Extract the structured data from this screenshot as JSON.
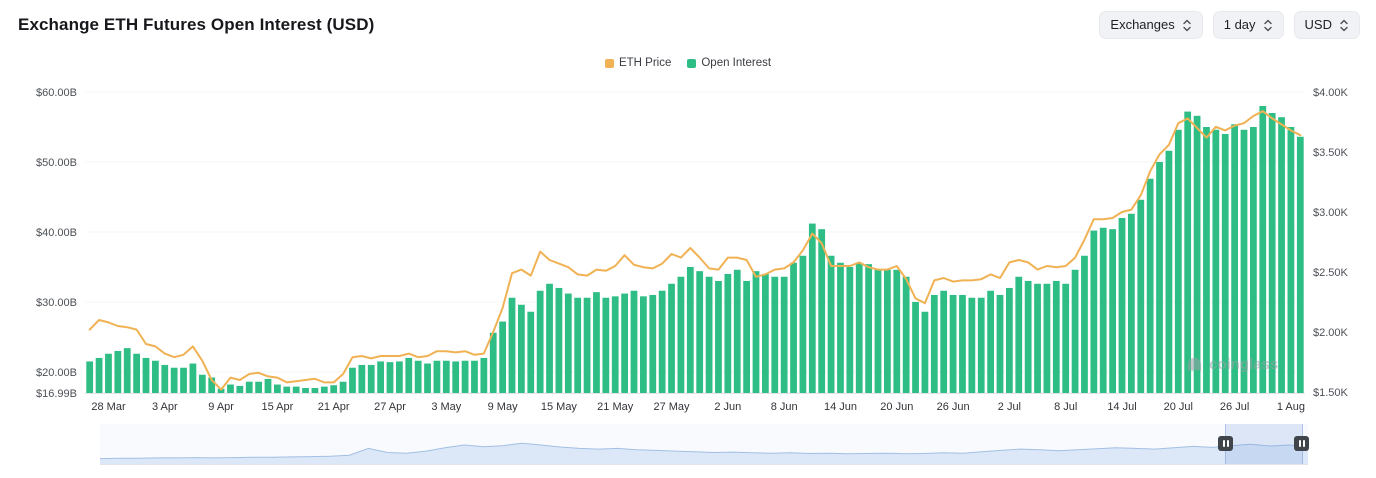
{
  "header": {
    "title": "Exchange ETH Futures Open Interest (USD)",
    "controls": [
      {
        "label": "Exchanges"
      },
      {
        "label": "1 day"
      },
      {
        "label": "USD"
      }
    ]
  },
  "legend": [
    {
      "label": "ETH Price",
      "color": "#F0B254"
    },
    {
      "label": "Open Interest",
      "color": "#2EBD85"
    }
  ],
  "watermark": "coinglass",
  "colors": {
    "bar": "#2EBD85",
    "line": "#F0B254",
    "navigator_fill": "#DCE8F8",
    "navigator_stroke": "#A3BFE4",
    "selection": "#BFD2F1",
    "handle": "#40454C"
  },
  "chart_data": {
    "type": "bar",
    "title": "Exchange ETH Futures Open Interest (USD)",
    "legend_position": "top",
    "grid": "horizontal-faint",
    "x": [
      "26 Mar",
      "27 Mar",
      "28 Mar",
      "29 Mar",
      "30 Mar",
      "31 Mar",
      "1 Apr",
      "2 Apr",
      "3 Apr",
      "4 Apr",
      "5 Apr",
      "6 Apr",
      "7 Apr",
      "8 Apr",
      "9 Apr",
      "10 Apr",
      "11 Apr",
      "12 Apr",
      "13 Apr",
      "14 Apr",
      "15 Apr",
      "16 Apr",
      "17 Apr",
      "18 Apr",
      "19 Apr",
      "20 Apr",
      "21 Apr",
      "22 Apr",
      "23 Apr",
      "24 Apr",
      "25 Apr",
      "26 Apr",
      "27 Apr",
      "28 Apr",
      "29 Apr",
      "30 Apr",
      "1 May",
      "2 May",
      "3 May",
      "4 May",
      "5 May",
      "6 May",
      "7 May",
      "8 May",
      "9 May",
      "10 May",
      "11 May",
      "12 May",
      "13 May",
      "14 May",
      "15 May",
      "16 May",
      "17 May",
      "18 May",
      "19 May",
      "20 May",
      "21 May",
      "22 May",
      "23 May",
      "24 May",
      "25 May",
      "26 May",
      "27 May",
      "28 May",
      "29 May",
      "30 May",
      "31 May",
      "1 Jun",
      "2 Jun",
      "3 Jun",
      "4 Jun",
      "5 Jun",
      "6 Jun",
      "7 Jun",
      "8 Jun",
      "9 Jun",
      "10 Jun",
      "11 Jun",
      "12 Jun",
      "13 Jun",
      "14 Jun",
      "15 Jun",
      "16 Jun",
      "17 Jun",
      "18 Jun",
      "19 Jun",
      "20 Jun",
      "21 Jun",
      "22 Jun",
      "23 Jun",
      "24 Jun",
      "25 Jun",
      "26 Jun",
      "27 Jun",
      "28 Jun",
      "29 Jun",
      "30 Jun",
      "1 Jul",
      "2 Jul",
      "3 Jul",
      "4 Jul",
      "5 Jul",
      "6 Jul",
      "7 Jul",
      "8 Jul",
      "9 Jul",
      "10 Jul",
      "11 Jul",
      "12 Jul",
      "13 Jul",
      "14 Jul",
      "15 Jul",
      "16 Jul",
      "17 Jul",
      "18 Jul",
      "19 Jul",
      "20 Jul",
      "21 Jul",
      "22 Jul",
      "23 Jul",
      "24 Jul",
      "25 Jul",
      "26 Jul",
      "27 Jul",
      "28 Jul",
      "29 Jul",
      "30 Jul",
      "31 Jul",
      "1 Aug",
      "2 Aug"
    ],
    "x_tick_labels": [
      "28 Mar",
      "3 Apr",
      "9 Apr",
      "15 Apr",
      "21 Apr",
      "27 Apr",
      "3 May",
      "9 May",
      "15 May",
      "21 May",
      "27 May",
      "2 Jun",
      "8 Jun",
      "14 Jun",
      "20 Jun",
      "26 Jun",
      "2 Jul",
      "8 Jul",
      "14 Jul",
      "20 Jul",
      "26 Jul",
      "1 Aug"
    ],
    "series": [
      {
        "name": "Open Interest",
        "type": "bar",
        "yaxis": "left",
        "units": "billion USD",
        "color": "#2EBD85",
        "values": [
          21.5,
          22.0,
          22.6,
          23.0,
          23.4,
          22.6,
          22.0,
          21.6,
          21.0,
          20.6,
          20.6,
          21.2,
          19.6,
          19.2,
          17.6,
          18.2,
          18.0,
          18.6,
          18.6,
          19.0,
          18.2,
          17.9,
          17.9,
          17.7,
          17.7,
          17.9,
          18.1,
          18.6,
          20.6,
          21.0,
          21.0,
          21.5,
          21.4,
          21.5,
          22.0,
          21.6,
          21.2,
          21.6,
          21.6,
          21.5,
          21.6,
          21.6,
          22.0,
          25.6,
          27.2,
          30.6,
          29.6,
          28.6,
          31.6,
          32.6,
          32.0,
          31.2,
          30.6,
          30.6,
          31.4,
          30.6,
          30.8,
          31.2,
          31.6,
          30.8,
          31.0,
          31.6,
          32.6,
          33.6,
          35.0,
          34.4,
          33.6,
          33.0,
          34.0,
          34.6,
          33.0,
          34.4,
          34.0,
          33.6,
          33.6,
          35.6,
          36.6,
          41.2,
          40.4,
          36.6,
          35.6,
          35.0,
          35.6,
          35.4,
          34.6,
          34.6,
          34.6,
          33.6,
          30.0,
          28.6,
          31.0,
          31.6,
          31.0,
          31.0,
          30.6,
          30.6,
          31.6,
          31.0,
          32.0,
          33.6,
          33.0,
          32.6,
          32.6,
          33.0,
          32.6,
          34.6,
          36.6,
          40.2,
          40.6,
          40.4,
          42.0,
          42.6,
          44.6,
          47.6,
          50.0,
          51.6,
          54.6,
          57.2,
          56.6,
          55.0,
          54.6,
          54.0,
          55.4,
          54.6,
          55.0,
          58.0,
          57.0,
          56.4,
          55.0,
          53.6
        ]
      },
      {
        "name": "ETH Price",
        "type": "line",
        "yaxis": "right",
        "units": "thousand USD",
        "color": "#F0B254",
        "values": [
          2.02,
          2.1,
          2.08,
          2.05,
          2.04,
          2.02,
          1.9,
          1.88,
          1.82,
          1.79,
          1.81,
          1.88,
          1.76,
          1.6,
          1.52,
          1.62,
          1.6,
          1.65,
          1.66,
          1.63,
          1.62,
          1.58,
          1.59,
          1.6,
          1.61,
          1.58,
          1.58,
          1.65,
          1.79,
          1.8,
          1.78,
          1.8,
          1.8,
          1.8,
          1.82,
          1.79,
          1.8,
          1.84,
          1.84,
          1.83,
          1.84,
          1.81,
          1.82,
          2.0,
          2.2,
          2.49,
          2.52,
          2.47,
          2.67,
          2.6,
          2.57,
          2.54,
          2.48,
          2.47,
          2.52,
          2.51,
          2.55,
          2.64,
          2.56,
          2.54,
          2.53,
          2.57,
          2.65,
          2.62,
          2.7,
          2.62,
          2.53,
          2.52,
          2.62,
          2.62,
          2.6,
          2.46,
          2.48,
          2.52,
          2.53,
          2.58,
          2.68,
          2.82,
          2.74,
          2.55,
          2.55,
          2.55,
          2.58,
          2.54,
          2.52,
          2.52,
          2.55,
          2.44,
          2.28,
          2.24,
          2.43,
          2.45,
          2.42,
          2.43,
          2.43,
          2.44,
          2.48,
          2.45,
          2.58,
          2.6,
          2.58,
          2.52,
          2.55,
          2.54,
          2.55,
          2.62,
          2.77,
          2.94,
          2.94,
          2.95,
          3.0,
          3.02,
          3.14,
          3.34,
          3.48,
          3.56,
          3.74,
          3.78,
          3.7,
          3.62,
          3.71,
          3.68,
          3.72,
          3.74,
          3.8,
          3.84,
          3.78,
          3.73,
          3.68,
          3.64
        ]
      }
    ],
    "left_axis": {
      "title": "Open Interest",
      "min": 16.99,
      "max": 60,
      "tick_labels": [
        "$60.00B",
        "$50.00B",
        "$40.00B",
        "$30.00B",
        "$20.00B",
        "$16.99B"
      ],
      "tick_values": [
        60,
        50,
        40,
        30,
        20,
        16.99
      ]
    },
    "right_axis": {
      "title": "ETH Price",
      "min": 1.5,
      "max": 4.0,
      "tick_labels": [
        "$4.00K",
        "$3.50K",
        "$3.00K",
        "$2.50K",
        "$2.00K",
        "$1.50K"
      ],
      "tick_values": [
        4.0,
        3.5,
        3.0,
        2.5,
        2.0,
        1.5
      ]
    }
  },
  "navigator": {
    "profile": [
      0.1,
      0.11,
      0.11,
      0.12,
      0.12,
      0.13,
      0.12,
      0.13,
      0.14,
      0.14,
      0.15,
      0.16,
      0.17,
      0.2,
      0.4,
      0.28,
      0.26,
      0.32,
      0.42,
      0.5,
      0.45,
      0.48,
      0.55,
      0.5,
      0.44,
      0.4,
      0.38,
      0.4,
      0.36,
      0.34,
      0.32,
      0.3,
      0.28,
      0.29,
      0.27,
      0.26,
      0.27,
      0.25,
      0.26,
      0.24,
      0.25,
      0.26,
      0.24,
      0.25,
      0.27,
      0.26,
      0.3,
      0.34,
      0.38,
      0.36,
      0.33,
      0.36,
      0.39,
      0.42,
      0.4,
      0.38,
      0.42,
      0.46,
      0.43,
      0.48,
      0.52,
      0.47,
      0.5,
      0.46
    ]
  }
}
